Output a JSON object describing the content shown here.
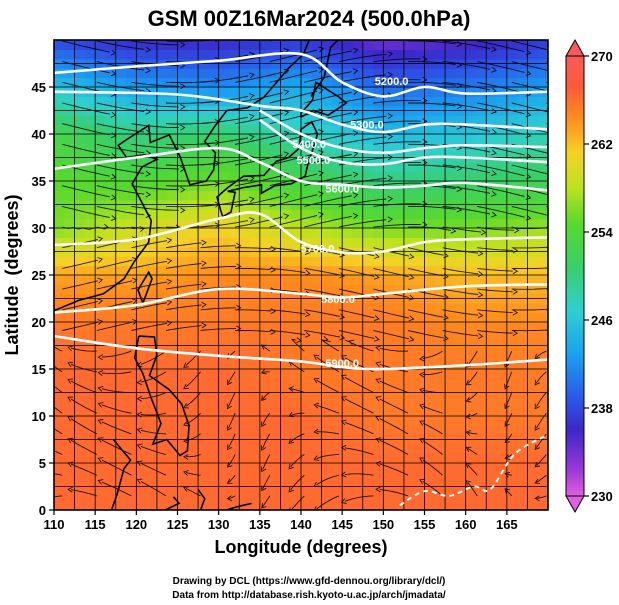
{
  "chart_data": {
    "type": "heatmap",
    "title": "GSM 00Z16Mar2024 (500.0hPa)",
    "xlabel": "Longitude (degrees)",
    "ylabel": "Latitude  (degrees)",
    "xlim": [
      110,
      170
    ],
    "ylim": [
      0,
      50
    ],
    "x_ticks": [
      110,
      115,
      120,
      125,
      130,
      135,
      140,
      145,
      150,
      155,
      160,
      165
    ],
    "y_ticks": [
      0,
      5,
      10,
      15,
      20,
      25,
      30,
      35,
      40,
      45
    ],
    "colorbar": {
      "ticks": [
        230,
        238,
        246,
        254,
        262,
        270
      ],
      "range": [
        230,
        270
      ]
    },
    "temperature_field": {
      "lats": [
        0,
        5,
        10,
        15,
        20,
        25,
        30,
        35,
        40,
        45,
        50
      ],
      "lons": [
        110,
        120,
        130,
        140,
        150,
        160,
        170
      ],
      "values": [
        [
          266,
          266,
          266,
          266,
          266,
          266,
          266
        ],
        [
          266,
          266,
          266,
          266,
          266,
          266,
          266
        ],
        [
          266,
          266,
          266,
          266,
          265,
          265,
          265
        ],
        [
          266,
          266,
          266,
          265,
          265,
          265,
          265
        ],
        [
          265,
          265,
          265,
          265,
          265,
          264,
          264
        ],
        [
          263,
          263,
          264,
          264,
          263,
          262,
          262
        ],
        [
          256,
          259,
          261,
          258,
          256,
          256,
          257
        ],
        [
          255,
          254,
          256,
          253,
          250,
          251,
          252
        ],
        [
          253,
          250,
          251,
          248,
          245,
          246,
          248
        ],
        [
          246,
          243,
          242,
          244,
          240,
          241,
          243
        ],
        [
          238,
          236,
          236,
          237,
          234,
          235,
          237
        ]
      ]
    },
    "contours": [
      {
        "label": "5200.0",
        "points": [
          [
            110,
            46.5
          ],
          [
            120,
            47.2
          ],
          [
            130,
            47.8
          ],
          [
            140,
            48.5
          ],
          [
            145,
            45.5
          ],
          [
            150,
            44
          ],
          [
            155,
            45
          ],
          [
            160,
            44.3
          ],
          [
            170,
            44.5
          ]
        ]
      },
      {
        "label": "5300.0",
        "points": [
          [
            110,
            44.5
          ],
          [
            125,
            44.2
          ],
          [
            135,
            43
          ],
          [
            140,
            42.5
          ],
          [
            145,
            41
          ],
          [
            150,
            40.2
          ],
          [
            155,
            41
          ],
          [
            160,
            41
          ],
          [
            170,
            40.5
          ]
        ]
      },
      {
        "label": "5400.0",
        "points": [
          [
            135,
            42.5
          ],
          [
            140,
            40
          ],
          [
            145,
            38.5
          ],
          [
            150,
            38
          ],
          [
            155,
            38.5
          ],
          [
            160,
            38.8
          ],
          [
            170,
            38.6
          ]
        ]
      },
      {
        "label": "5500.0",
        "points": [
          [
            135,
            41.5
          ],
          [
            140,
            38.5
          ],
          [
            145,
            37
          ],
          [
            150,
            36.8
          ],
          [
            155,
            37.5
          ],
          [
            160,
            37.5
          ],
          [
            170,
            37
          ]
        ]
      },
      {
        "label": "5600.0",
        "points": [
          [
            110,
            36.3
          ],
          [
            120,
            37.5
          ],
          [
            130,
            38.5
          ],
          [
            135,
            37
          ],
          [
            140,
            35
          ],
          [
            145,
            34.6
          ],
          [
            150,
            34.3
          ],
          [
            155,
            34.5
          ],
          [
            160,
            34.8
          ],
          [
            170,
            34
          ]
        ]
      },
      {
        "label": "5700.0",
        "points": [
          [
            110,
            28.2
          ],
          [
            120,
            28.8
          ],
          [
            130,
            31
          ],
          [
            135,
            31.5
          ],
          [
            140,
            28.5
          ],
          [
            145,
            27.4
          ],
          [
            150,
            27.5
          ],
          [
            155,
            28.5
          ],
          [
            160,
            28.8
          ],
          [
            170,
            29
          ]
        ]
      },
      {
        "label": "5800.0",
        "points": [
          [
            110,
            21
          ],
          [
            120,
            21.8
          ],
          [
            130,
            23.5
          ],
          [
            140,
            23
          ],
          [
            145,
            22.6
          ],
          [
            150,
            23
          ],
          [
            160,
            23.8
          ],
          [
            170,
            24
          ]
        ]
      },
      {
        "label": "5900.0",
        "points": [
          [
            110,
            18.5
          ],
          [
            120,
            17.2
          ],
          [
            130,
            16.4
          ],
          [
            140,
            15.8
          ],
          [
            145,
            15.2
          ],
          [
            150,
            15
          ],
          [
            160,
            15.4
          ],
          [
            170,
            16
          ]
        ]
      }
    ],
    "contour_labels": [
      {
        "text": "5200.0",
        "lon": 151,
        "lat": 45.2
      },
      {
        "text": "5300.0",
        "lon": 148,
        "lat": 40.6
      },
      {
        "text": "5400.0",
        "lon": 141,
        "lat": 38.5
      },
      {
        "text": "5500.0",
        "lon": 141.5,
        "lat": 36.8
      },
      {
        "text": "5600.0",
        "lon": 145,
        "lat": 33.8
      },
      {
        "text": "5700.0",
        "lon": 142,
        "lat": 27.4
      },
      {
        "text": "5800.0",
        "lon": 144.5,
        "lat": 22.0
      },
      {
        "text": "5900.0",
        "lon": 145,
        "lat": 15.2
      }
    ]
  },
  "credits": {
    "drawing": "Drawing by DCL (https://www.gfd-dennou.org/library/dcl/)",
    "data": "Data from http://database.rish.kyoto-u.ac.jp/arch/jmadata/"
  },
  "colors": {
    "colormap": [
      "#e060e0",
      "#3c28c8",
      "#2b57e8",
      "#1aa0f0",
      "#2ed0d0",
      "#38cf6a",
      "#58d92c",
      "#bce21e",
      "#f5d225",
      "#ff8b1d",
      "#ff5a3a",
      "#fa5a5a"
    ],
    "contour": "#ffffff",
    "grid": "#000000",
    "coast": "#000000",
    "streamline": "#000000"
  }
}
